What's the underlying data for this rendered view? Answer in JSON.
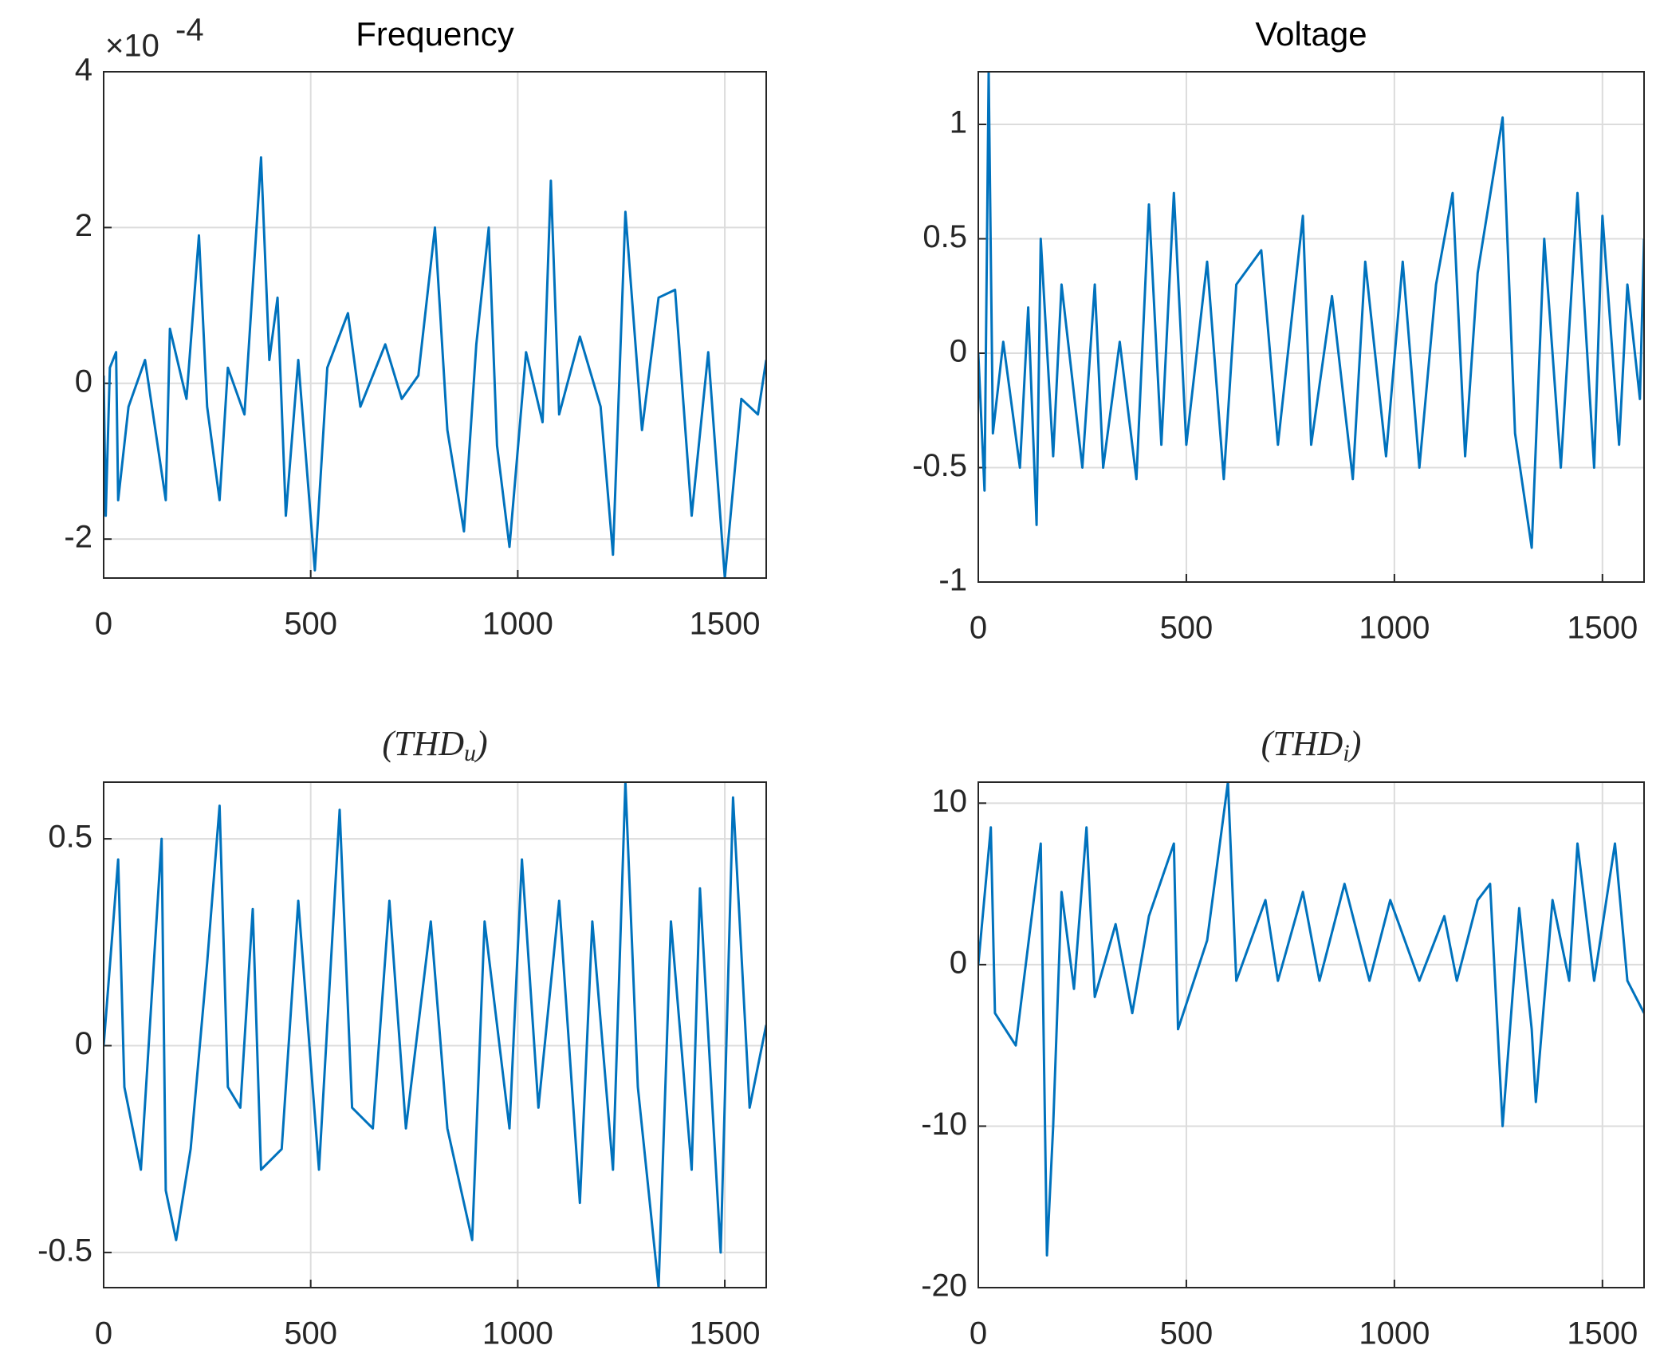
{
  "chart_data": [
    {
      "type": "line",
      "title": "Frequency",
      "y_scale_label": "×10",
      "y_scale_exponent": "-4",
      "color": "#0072bd",
      "grid": true,
      "xlim": [
        0,
        1600
      ],
      "xticks": [
        0,
        500,
        1000,
        1500
      ],
      "ylim": [
        -0.00025,
        0.0004
      ],
      "yticks": [
        {
          "value": -0.0002,
          "label": "-2"
        },
        {
          "value": 0,
          "label": "0"
        },
        {
          "value": 0.0002,
          "label": "2"
        },
        {
          "value": 0.0004,
          "label": "4"
        }
      ],
      "x": [
        0,
        5,
        15,
        30,
        35,
        60,
        100,
        150,
        160,
        200,
        230,
        250,
        280,
        300,
        340,
        380,
        400,
        420,
        440,
        470,
        510,
        540,
        590,
        620,
        680,
        720,
        760,
        800,
        830,
        870,
        900,
        930,
        950,
        980,
        1020,
        1060,
        1080,
        1100,
        1150,
        1200,
        1230,
        1260,
        1300,
        1340,
        1380,
        1420,
        1460,
        1500,
        1540,
        1580,
        1600
      ],
      "values": [
        1e-05,
        -0.00017,
        2e-05,
        4e-05,
        -0.00015,
        -3e-05,
        3e-05,
        -0.00015,
        7e-05,
        -2e-05,
        0.00019,
        -3e-05,
        -0.00015,
        2e-05,
        -4e-05,
        0.00029,
        3e-05,
        0.00011,
        -0.00017,
        3e-05,
        -0.00024,
        2e-05,
        9e-05,
        -3e-05,
        5e-05,
        -2e-05,
        1e-05,
        0.0002,
        -6e-05,
        -0.00019,
        5e-05,
        0.0002,
        -8e-05,
        -0.00021,
        4e-05,
        -5e-05,
        0.00026,
        -4e-05,
        6e-05,
        -3e-05,
        -0.00022,
        0.00022,
        -6e-05,
        0.00011,
        0.00012,
        -0.00017,
        4e-05,
        -0.00025,
        -2e-05,
        -4e-05,
        3e-05
      ]
    },
    {
      "type": "line",
      "title": "Voltage",
      "color": "#0072bd",
      "grid": true,
      "xlim": [
        0,
        1600
      ],
      "xticks": [
        0,
        500,
        1000,
        1500
      ],
      "ylim": [
        -1,
        1.23
      ],
      "yticks": [
        -1,
        -0.5,
        0,
        0.5,
        1
      ],
      "x": [
        0,
        15,
        25,
        35,
        60,
        100,
        120,
        140,
        150,
        180,
        200,
        250,
        280,
        300,
        340,
        380,
        410,
        440,
        470,
        500,
        550,
        590,
        620,
        680,
        720,
        780,
        800,
        850,
        900,
        930,
        980,
        1020,
        1060,
        1100,
        1140,
        1170,
        1200,
        1260,
        1290,
        1330,
        1360,
        1400,
        1440,
        1480,
        1500,
        1540,
        1560,
        1590,
        1600
      ],
      "values": [
        0,
        -0.6,
        1.23,
        -0.35,
        0.05,
        -0.5,
        0.2,
        -0.75,
        0.5,
        -0.45,
        0.3,
        -0.5,
        0.3,
        -0.5,
        0.05,
        -0.55,
        0.65,
        -0.4,
        0.7,
        -0.4,
        0.4,
        -0.55,
        0.3,
        0.45,
        -0.4,
        0.6,
        -0.4,
        0.25,
        -0.55,
        0.4,
        -0.45,
        0.4,
        -0.5,
        0.3,
        0.7,
        -0.45,
        0.35,
        1.03,
        -0.35,
        -0.85,
        0.5,
        -0.5,
        0.7,
        -0.5,
        0.6,
        -0.4,
        0.3,
        -0.2,
        0.5
      ]
    },
    {
      "type": "line",
      "title": "(THD",
      "title_subscript": "u",
      "title_suffix": ")",
      "color": "#0072bd",
      "grid": true,
      "xlim": [
        0,
        1600
      ],
      "xticks": [
        0,
        500,
        1000,
        1500
      ],
      "ylim": [
        -0.585,
        0.637
      ],
      "yticks": [
        -0.5,
        0,
        0.5
      ],
      "x": [
        0,
        35,
        50,
        90,
        140,
        150,
        175,
        210,
        250,
        280,
        300,
        330,
        360,
        380,
        430,
        470,
        520,
        570,
        600,
        650,
        690,
        730,
        790,
        830,
        890,
        920,
        980,
        1010,
        1050,
        1100,
        1150,
        1180,
        1230,
        1260,
        1290,
        1340,
        1370,
        1420,
        1440,
        1490,
        1520,
        1560,
        1600
      ],
      "values": [
        0,
        0.45,
        -0.1,
        -0.3,
        0.5,
        -0.35,
        -0.47,
        -0.25,
        0.2,
        0.58,
        -0.1,
        -0.15,
        0.33,
        -0.3,
        -0.25,
        0.35,
        -0.3,
        0.57,
        -0.15,
        -0.2,
        0.35,
        -0.2,
        0.3,
        -0.2,
        -0.47,
        0.3,
        -0.2,
        0.45,
        -0.15,
        0.35,
        -0.38,
        0.3,
        -0.3,
        0.637,
        -0.1,
        -0.585,
        0.3,
        -0.3,
        0.38,
        -0.5,
        0.6,
        -0.15,
        0.05
      ]
    },
    {
      "type": "line",
      "title": "(THD",
      "title_subscript": "i",
      "title_suffix": ")",
      "color": "#0072bd",
      "grid": true,
      "xlim": [
        0,
        1600
      ],
      "xticks": [
        0,
        500,
        1000,
        1500
      ],
      "ylim": [
        -20,
        11.3
      ],
      "yticks": [
        -20,
        -10,
        0,
        10
      ],
      "x": [
        0,
        30,
        40,
        90,
        150,
        165,
        180,
        200,
        230,
        260,
        280,
        330,
        370,
        410,
        470,
        480,
        550,
        600,
        620,
        690,
        720,
        780,
        820,
        880,
        940,
        990,
        1060,
        1120,
        1150,
        1200,
        1230,
        1260,
        1300,
        1330,
        1340,
        1380,
        1420,
        1440,
        1480,
        1530,
        1560,
        1600
      ],
      "values": [
        0,
        8.5,
        -3,
        -5,
        7.5,
        -18,
        -10,
        4.5,
        -1.5,
        8.5,
        -2,
        2.5,
        -3,
        3,
        7.5,
        -4,
        1.5,
        11.3,
        -1,
        4,
        -1,
        4.5,
        -1,
        5,
        -1,
        4,
        -1,
        3,
        -1,
        4,
        5,
        -10,
        3.5,
        -4,
        -8.5,
        4,
        -1,
        7.5,
        -1,
        7.5,
        -1,
        -3
      ]
    }
  ]
}
